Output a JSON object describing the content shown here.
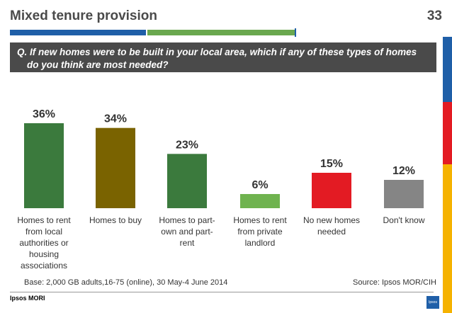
{
  "header": {
    "title": "Mixed tenure provision",
    "slide_number": "33"
  },
  "question": "Q. If new homes were to be built in your local area, which if any of these types of homes do you think are most needed?",
  "colors": {
    "green": "#3b7a3d",
    "olive": "#7a6300",
    "light_green": "#6fb34f",
    "red": "#e31b23",
    "grey": "#858585"
  },
  "chart_data": {
    "type": "bar",
    "categories": [
      "Homes to rent from local authorities or housing associations",
      "Homes to buy",
      "Homes to part-own and part-rent",
      "Homes to rent from private landlord",
      "No new homes needed",
      "Don't know"
    ],
    "category_lines": [
      [
        "Homes to rent",
        "from local",
        "authorities or",
        "housing",
        "associations"
      ],
      [
        "Homes to buy"
      ],
      [
        "Homes to part-",
        "own and part-",
        "rent"
      ],
      [
        "Homes to rent",
        "from private",
        "landlord"
      ],
      [
        "No new homes",
        "needed"
      ],
      [
        "Don't know"
      ]
    ],
    "values": [
      36,
      34,
      23,
      6,
      15,
      12
    ],
    "value_labels": [
      "36%",
      "34%",
      "23%",
      "6%",
      "15%",
      "12%"
    ],
    "bar_colors": [
      "#3b7a3d",
      "#7a6300",
      "#3b7a3d",
      "#6fb34f",
      "#e31b23",
      "#858585"
    ],
    "ylim": [
      0,
      36
    ],
    "grid": false
  },
  "footer": {
    "base": "Base: 2,000 GB adults,16-75 (online), 30 May-4 June 2014",
    "source": "Source: Ipsos MOR/CIH",
    "logo_text": "Ipsos MORI",
    "badge_text": "Ipsos"
  }
}
